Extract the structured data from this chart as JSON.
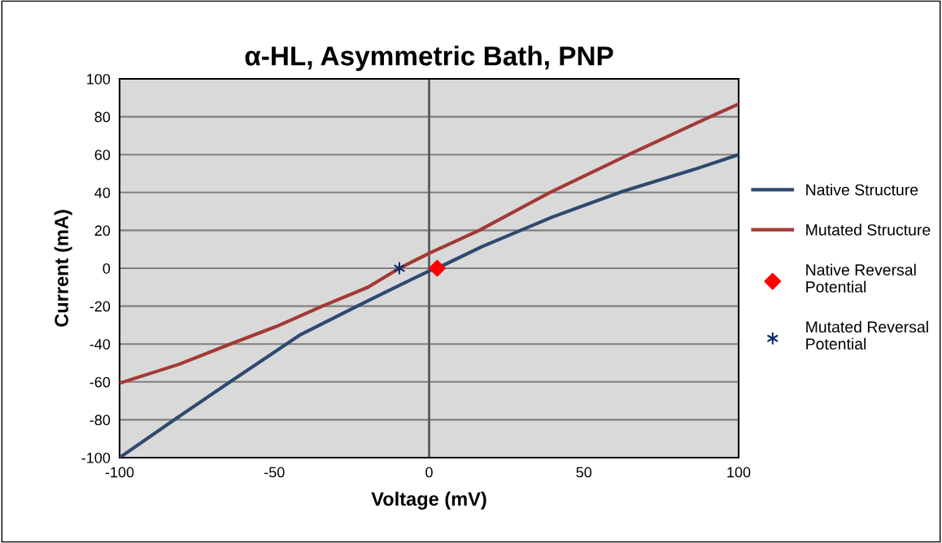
{
  "chart_data": {
    "type": "line",
    "title": "α-HL, Asymmetric Bath, PNP",
    "xlabel": "Voltage (mV)",
    "ylabel": "Current (mA)",
    "xlim": [
      -100,
      100
    ],
    "xticks": [
      -100,
      -50,
      0,
      50,
      100
    ],
    "ylim": [
      -100,
      100
    ],
    "yticks": [
      -100,
      -80,
      -60,
      -40,
      -20,
      0,
      20,
      40,
      60,
      80,
      100
    ],
    "grid": "y",
    "ref_lines": [
      {
        "axis": "x",
        "value": 0,
        "color": "#595959"
      }
    ],
    "legend": "right",
    "marker": "none",
    "line_style": "solid",
    "series": [
      {
        "name": "Native Structure",
        "color": "#2e4a6e",
        "x": [
          -100,
          -81.7,
          -63.7,
          -41.5,
          -19.7,
          0,
          2.6,
          17.1,
          39.9,
          62.7,
          85.5,
          100
        ],
        "values": [
          -100,
          -79.3,
          -59.3,
          -35,
          -17.1,
          -1.4,
          0,
          11.4,
          27.1,
          40.7,
          52.1,
          60
        ]
      },
      {
        "name": "Mutated Structure",
        "color": "#a33a35",
        "x": [
          -100,
          -80.8,
          -64.2,
          -49.3,
          -34.5,
          -19.7,
          -9.6,
          0,
          16.2,
          39,
          64.5,
          90.8,
          100
        ],
        "values": [
          -60.7,
          -50.7,
          -40,
          -30.7,
          -20,
          -10,
          0,
          7.9,
          20,
          40,
          60,
          80,
          86.7
        ]
      },
      {
        "name": "Native Reversal Potential",
        "type": "scatter",
        "marker": "diamond",
        "color": "#ff0000",
        "x": [
          2.6
        ],
        "values": [
          0
        ]
      },
      {
        "name": "Mutated Reversal Potential",
        "type": "scatter",
        "marker": "cross",
        "color": "#0d2a6b",
        "x": [
          -9.6
        ],
        "values": [
          0
        ]
      }
    ]
  }
}
